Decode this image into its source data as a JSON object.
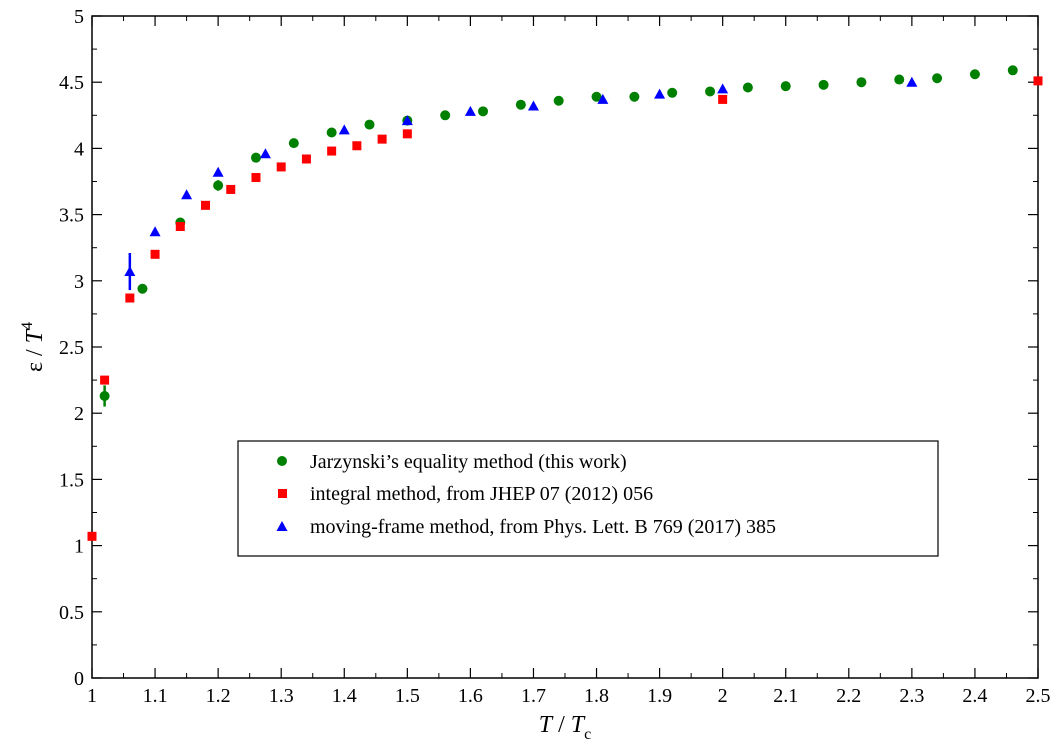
{
  "chart_data": {
    "type": "scatter",
    "xlabel": {
      "main": "T",
      "sep": " / ",
      "den": "T",
      "den_sub": "c"
    },
    "ylabel": {
      "main": "ε / ",
      "var": "T",
      "sup": "4"
    },
    "xlim": [
      1.0,
      2.5
    ],
    "ylim": [
      0,
      5
    ],
    "x_ticks": [
      "1",
      "1.1",
      "1.2",
      "1.3",
      "1.4",
      "1.5",
      "1.6",
      "1.7",
      "1.8",
      "1.9",
      "2",
      "2.1",
      "2.2",
      "2.3",
      "2.4",
      "2.5"
    ],
    "y_ticks": [
      "0",
      "0.5",
      "1",
      "1.5",
      "2",
      "2.5",
      "3",
      "3.5",
      "4",
      "4.5",
      "5"
    ],
    "grid": false,
    "legend_position": "center-right",
    "series": [
      {
        "name": "Jarzynski’s equality method (this work)",
        "marker": "circle",
        "color": "#008000",
        "points": [
          {
            "x": 1.02,
            "y": 2.13,
            "err": 0.08
          },
          {
            "x": 1.08,
            "y": 2.94
          },
          {
            "x": 1.14,
            "y": 3.44
          },
          {
            "x": 1.2,
            "y": 3.72,
            "err": 0.04
          },
          {
            "x": 1.26,
            "y": 3.93
          },
          {
            "x": 1.32,
            "y": 4.04
          },
          {
            "x": 1.38,
            "y": 4.12
          },
          {
            "x": 1.44,
            "y": 4.18
          },
          {
            "x": 1.5,
            "y": 4.21
          },
          {
            "x": 1.56,
            "y": 4.25
          },
          {
            "x": 1.62,
            "y": 4.28
          },
          {
            "x": 1.68,
            "y": 4.33
          },
          {
            "x": 1.74,
            "y": 4.36
          },
          {
            "x": 1.8,
            "y": 4.39
          },
          {
            "x": 1.86,
            "y": 4.39
          },
          {
            "x": 1.92,
            "y": 4.42
          },
          {
            "x": 1.98,
            "y": 4.43
          },
          {
            "x": 2.04,
            "y": 4.46
          },
          {
            "x": 2.1,
            "y": 4.47
          },
          {
            "x": 2.16,
            "y": 4.48
          },
          {
            "x": 2.22,
            "y": 4.5
          },
          {
            "x": 2.28,
            "y": 4.52
          },
          {
            "x": 2.34,
            "y": 4.53
          },
          {
            "x": 2.4,
            "y": 4.56
          },
          {
            "x": 2.46,
            "y": 4.59
          }
        ]
      },
      {
        "name": "integral method, from JHEP 07 (2012) 056",
        "marker": "square",
        "color": "#ff0000",
        "points": [
          {
            "x": 1.0,
            "y": 1.07
          },
          {
            "x": 1.02,
            "y": 2.25
          },
          {
            "x": 1.06,
            "y": 2.87
          },
          {
            "x": 1.1,
            "y": 3.2
          },
          {
            "x": 1.14,
            "y": 3.41
          },
          {
            "x": 1.18,
            "y": 3.57
          },
          {
            "x": 1.22,
            "y": 3.69
          },
          {
            "x": 1.26,
            "y": 3.78
          },
          {
            "x": 1.3,
            "y": 3.86
          },
          {
            "x": 1.34,
            "y": 3.92
          },
          {
            "x": 1.38,
            "y": 3.98
          },
          {
            "x": 1.42,
            "y": 4.02
          },
          {
            "x": 1.46,
            "y": 4.07
          },
          {
            "x": 1.5,
            "y": 4.11
          },
          {
            "x": 2.0,
            "y": 4.37
          },
          {
            "x": 2.5,
            "y": 4.51
          }
        ]
      },
      {
        "name": "moving-frame method, from Phys. Lett. B 769 (2017) 385",
        "marker": "triangle",
        "color": "#0000ff",
        "points": [
          {
            "x": 1.06,
            "y": 3.07,
            "err": 0.14
          },
          {
            "x": 1.1,
            "y": 3.37
          },
          {
            "x": 1.15,
            "y": 3.65
          },
          {
            "x": 1.2,
            "y": 3.82
          },
          {
            "x": 1.275,
            "y": 3.96
          },
          {
            "x": 1.4,
            "y": 4.14
          },
          {
            "x": 1.5,
            "y": 4.21
          },
          {
            "x": 1.6,
            "y": 4.28
          },
          {
            "x": 1.7,
            "y": 4.32
          },
          {
            "x": 1.81,
            "y": 4.37
          },
          {
            "x": 1.9,
            "y": 4.41
          },
          {
            "x": 2.0,
            "y": 4.45
          },
          {
            "x": 2.3,
            "y": 4.5
          }
        ]
      }
    ]
  }
}
